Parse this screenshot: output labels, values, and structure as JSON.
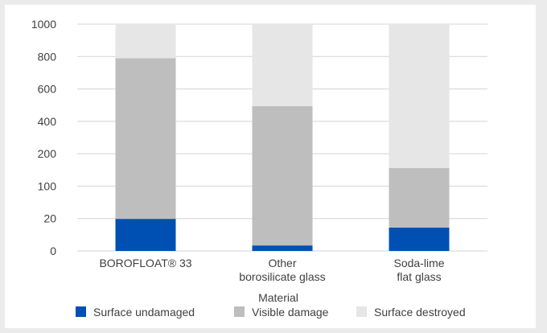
{
  "chart_data": {
    "type": "bar",
    "stacked": true,
    "title": "",
    "xlabel": "Material",
    "ylabel": "",
    "y_ticks": [
      "0",
      "20",
      "100",
      "200",
      "400",
      "600",
      "800",
      "1000"
    ],
    "categories": [
      [
        "BOROFLOAT® 33"
      ],
      [
        "Other",
        "borosilicate glass"
      ],
      [
        "Soda-lime",
        "flat glass"
      ]
    ],
    "category_positions": [
      0.5,
      1.5,
      2.5
    ],
    "series": [
      {
        "name": "Surface undamaged",
        "color": "#0050b4",
        "ranges": [
          [
            0,
            0.99
          ],
          [
            0,
            0.17
          ],
          [
            0,
            0.72
          ]
        ]
      },
      {
        "name": "Visible damage",
        "color": "#bebebe",
        "ranges": [
          [
            0.99,
            5.95
          ],
          [
            0.17,
            4.47
          ],
          [
            0.72,
            2.56
          ]
        ]
      },
      {
        "name": "Surface destroyed",
        "color": "#e6e6e6",
        "ranges": [
          [
            5.95,
            7
          ],
          [
            4.47,
            7
          ],
          [
            2.56,
            7
          ]
        ]
      }
    ],
    "ylim_tick_index": [
      0,
      7
    ],
    "grid": true,
    "legend_position": "bottom"
  }
}
